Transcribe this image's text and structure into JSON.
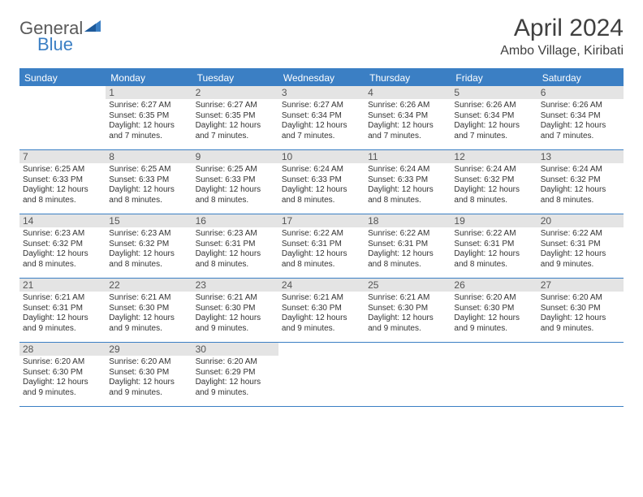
{
  "logo": {
    "word1": "General",
    "word2": "Blue"
  },
  "title": "April 2024",
  "location": "Ambo Village, Kiribati",
  "colors": {
    "accent": "#3b7fc4",
    "header_bg": "#3b7fc4",
    "header_text": "#ffffff",
    "daynum_bg": "#e4e4e4",
    "body_text": "#333333",
    "title_text": "#404040",
    "background": "#ffffff"
  },
  "typography": {
    "title_fontsize": 30,
    "location_fontsize": 16,
    "day_header_fontsize": 12,
    "cell_fontsize": 10
  },
  "day_headers": [
    "Sunday",
    "Monday",
    "Tuesday",
    "Wednesday",
    "Thursday",
    "Friday",
    "Saturday"
  ],
  "weeks": [
    [
      {
        "num": "",
        "sunrise": "",
        "sunset": "",
        "daylight": ""
      },
      {
        "num": "1",
        "sunrise": "Sunrise: 6:27 AM",
        "sunset": "Sunset: 6:35 PM",
        "daylight": "Daylight: 12 hours and 7 minutes."
      },
      {
        "num": "2",
        "sunrise": "Sunrise: 6:27 AM",
        "sunset": "Sunset: 6:35 PM",
        "daylight": "Daylight: 12 hours and 7 minutes."
      },
      {
        "num": "3",
        "sunrise": "Sunrise: 6:27 AM",
        "sunset": "Sunset: 6:34 PM",
        "daylight": "Daylight: 12 hours and 7 minutes."
      },
      {
        "num": "4",
        "sunrise": "Sunrise: 6:26 AM",
        "sunset": "Sunset: 6:34 PM",
        "daylight": "Daylight: 12 hours and 7 minutes."
      },
      {
        "num": "5",
        "sunrise": "Sunrise: 6:26 AM",
        "sunset": "Sunset: 6:34 PM",
        "daylight": "Daylight: 12 hours and 7 minutes."
      },
      {
        "num": "6",
        "sunrise": "Sunrise: 6:26 AM",
        "sunset": "Sunset: 6:34 PM",
        "daylight": "Daylight: 12 hours and 7 minutes."
      }
    ],
    [
      {
        "num": "7",
        "sunrise": "Sunrise: 6:25 AM",
        "sunset": "Sunset: 6:33 PM",
        "daylight": "Daylight: 12 hours and 8 minutes."
      },
      {
        "num": "8",
        "sunrise": "Sunrise: 6:25 AM",
        "sunset": "Sunset: 6:33 PM",
        "daylight": "Daylight: 12 hours and 8 minutes."
      },
      {
        "num": "9",
        "sunrise": "Sunrise: 6:25 AM",
        "sunset": "Sunset: 6:33 PM",
        "daylight": "Daylight: 12 hours and 8 minutes."
      },
      {
        "num": "10",
        "sunrise": "Sunrise: 6:24 AM",
        "sunset": "Sunset: 6:33 PM",
        "daylight": "Daylight: 12 hours and 8 minutes."
      },
      {
        "num": "11",
        "sunrise": "Sunrise: 6:24 AM",
        "sunset": "Sunset: 6:33 PM",
        "daylight": "Daylight: 12 hours and 8 minutes."
      },
      {
        "num": "12",
        "sunrise": "Sunrise: 6:24 AM",
        "sunset": "Sunset: 6:32 PM",
        "daylight": "Daylight: 12 hours and 8 minutes."
      },
      {
        "num": "13",
        "sunrise": "Sunrise: 6:24 AM",
        "sunset": "Sunset: 6:32 PM",
        "daylight": "Daylight: 12 hours and 8 minutes."
      }
    ],
    [
      {
        "num": "14",
        "sunrise": "Sunrise: 6:23 AM",
        "sunset": "Sunset: 6:32 PM",
        "daylight": "Daylight: 12 hours and 8 minutes."
      },
      {
        "num": "15",
        "sunrise": "Sunrise: 6:23 AM",
        "sunset": "Sunset: 6:32 PM",
        "daylight": "Daylight: 12 hours and 8 minutes."
      },
      {
        "num": "16",
        "sunrise": "Sunrise: 6:23 AM",
        "sunset": "Sunset: 6:31 PM",
        "daylight": "Daylight: 12 hours and 8 minutes."
      },
      {
        "num": "17",
        "sunrise": "Sunrise: 6:22 AM",
        "sunset": "Sunset: 6:31 PM",
        "daylight": "Daylight: 12 hours and 8 minutes."
      },
      {
        "num": "18",
        "sunrise": "Sunrise: 6:22 AM",
        "sunset": "Sunset: 6:31 PM",
        "daylight": "Daylight: 12 hours and 8 minutes."
      },
      {
        "num": "19",
        "sunrise": "Sunrise: 6:22 AM",
        "sunset": "Sunset: 6:31 PM",
        "daylight": "Daylight: 12 hours and 8 minutes."
      },
      {
        "num": "20",
        "sunrise": "Sunrise: 6:22 AM",
        "sunset": "Sunset: 6:31 PM",
        "daylight": "Daylight: 12 hours and 9 minutes."
      }
    ],
    [
      {
        "num": "21",
        "sunrise": "Sunrise: 6:21 AM",
        "sunset": "Sunset: 6:31 PM",
        "daylight": "Daylight: 12 hours and 9 minutes."
      },
      {
        "num": "22",
        "sunrise": "Sunrise: 6:21 AM",
        "sunset": "Sunset: 6:30 PM",
        "daylight": "Daylight: 12 hours and 9 minutes."
      },
      {
        "num": "23",
        "sunrise": "Sunrise: 6:21 AM",
        "sunset": "Sunset: 6:30 PM",
        "daylight": "Daylight: 12 hours and 9 minutes."
      },
      {
        "num": "24",
        "sunrise": "Sunrise: 6:21 AM",
        "sunset": "Sunset: 6:30 PM",
        "daylight": "Daylight: 12 hours and 9 minutes."
      },
      {
        "num": "25",
        "sunrise": "Sunrise: 6:21 AM",
        "sunset": "Sunset: 6:30 PM",
        "daylight": "Daylight: 12 hours and 9 minutes."
      },
      {
        "num": "26",
        "sunrise": "Sunrise: 6:20 AM",
        "sunset": "Sunset: 6:30 PM",
        "daylight": "Daylight: 12 hours and 9 minutes."
      },
      {
        "num": "27",
        "sunrise": "Sunrise: 6:20 AM",
        "sunset": "Sunset: 6:30 PM",
        "daylight": "Daylight: 12 hours and 9 minutes."
      }
    ],
    [
      {
        "num": "28",
        "sunrise": "Sunrise: 6:20 AM",
        "sunset": "Sunset: 6:30 PM",
        "daylight": "Daylight: 12 hours and 9 minutes."
      },
      {
        "num": "29",
        "sunrise": "Sunrise: 6:20 AM",
        "sunset": "Sunset: 6:30 PM",
        "daylight": "Daylight: 12 hours and 9 minutes."
      },
      {
        "num": "30",
        "sunrise": "Sunrise: 6:20 AM",
        "sunset": "Sunset: 6:29 PM",
        "daylight": "Daylight: 12 hours and 9 minutes."
      },
      {
        "num": "",
        "sunrise": "",
        "sunset": "",
        "daylight": ""
      },
      {
        "num": "",
        "sunrise": "",
        "sunset": "",
        "daylight": ""
      },
      {
        "num": "",
        "sunrise": "",
        "sunset": "",
        "daylight": ""
      },
      {
        "num": "",
        "sunrise": "",
        "sunset": "",
        "daylight": ""
      }
    ]
  ]
}
